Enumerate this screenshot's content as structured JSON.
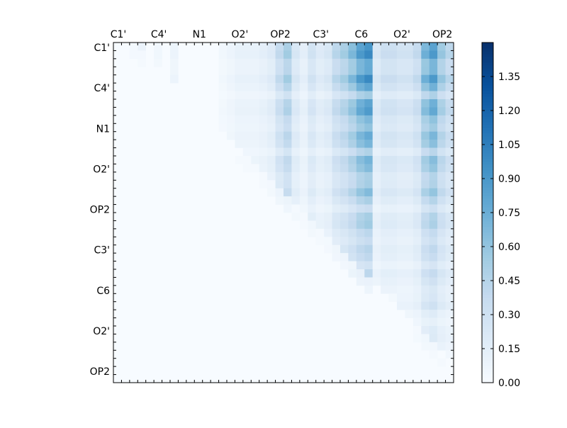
{
  "chart_data": {
    "type": "heatmap",
    "title": "",
    "xlabel": "",
    "ylabel": "",
    "size": 42,
    "x_tick_labels": [
      "C1'",
      "C4'",
      "N1",
      "O2'",
      "OP2",
      "C3'",
      "C6",
      "O2'",
      "OP2"
    ],
    "y_tick_labels": [
      "C1'",
      "C4'",
      "N1",
      "O2'",
      "OP2",
      "C3'",
      "C6",
      "O2'",
      "OP2"
    ],
    "colorbar": {
      "vmin": 0.0,
      "vmax": 1.5,
      "tick_labels": [
        "0.00",
        "0.15",
        "0.30",
        "0.45",
        "0.60",
        "0.75",
        "0.90",
        "1.05",
        "1.20",
        "1.35"
      ],
      "colors": [
        "#f7fbff",
        "#deebf7",
        "#c6dbef",
        "#9ecae1",
        "#6baed6",
        "#4292c6",
        "#2171b5",
        "#08519c",
        "#08306b"
      ]
    },
    "note_values": "Symmetric pairwise matrix, upper triangle shown; values estimated from colour scale",
    "cells": [
      [
        2,
        0.1
      ],
      [
        3,
        0.1
      ],
      [
        5,
        0.05
      ],
      [
        7,
        0.08
      ],
      [
        13,
        0.05
      ],
      [
        14,
        0.08
      ],
      [
        15,
        0.12
      ],
      [
        16,
        0.12
      ],
      [
        17,
        0.12
      ],
      [
        18,
        0.15
      ],
      [
        19,
        0.2
      ],
      [
        20,
        0.4
      ],
      [
        21,
        0.55
      ],
      [
        22,
        0.25
      ],
      [
        23,
        0.15
      ],
      [
        24,
        0.3
      ],
      [
        25,
        0.2
      ],
      [
        26,
        0.25
      ],
      [
        27,
        0.45
      ],
      [
        28,
        0.55
      ],
      [
        29,
        0.7
      ],
      [
        30,
        0.9
      ],
      [
        31,
        1.0
      ],
      [
        32,
        0.25
      ],
      [
        33,
        0.35
      ],
      [
        34,
        0.35
      ],
      [
        35,
        0.3
      ],
      [
        36,
        0.3
      ],
      [
        37,
        0.4
      ],
      [
        38,
        0.75
      ],
      [
        39,
        0.9
      ],
      [
        40,
        0.6
      ],
      [
        41,
        0.45
      ]
    ]
  }
}
